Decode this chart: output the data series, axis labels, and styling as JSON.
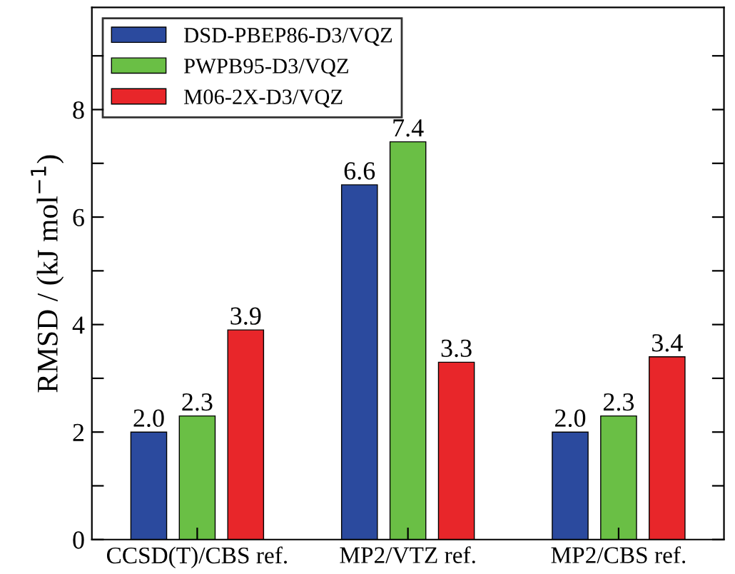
{
  "chart_data": {
    "type": "bar",
    "ylabel": "RMSD / (kJ mol$^{−1}$)",
    "categories": [
      "CCSD(T)/CBS ref.",
      "MP2/VTZ ref.",
      "MP2/CBS ref."
    ],
    "series": [
      {
        "name": "DSD-PBEP86-D3/VQZ",
        "color": "#2b4a9e",
        "values": [
          2.0,
          6.6,
          2.0
        ],
        "value_labels": [
          "2.0",
          "6.6",
          "2.0"
        ]
      },
      {
        "name": "PWPB95-D3/VQZ",
        "color": "#6abf45",
        "values": [
          2.3,
          7.4,
          2.3
        ],
        "value_labels": [
          "2.3",
          "7.4",
          "2.3"
        ]
      },
      {
        "name": "M06-2X-D3/VQZ",
        "color": "#e8262a",
        "values": [
          3.9,
          3.3,
          3.4
        ],
        "value_labels": [
          "3.9",
          "3.3",
          "3.4"
        ]
      }
    ],
    "ylim": [
      0,
      9.9
    ],
    "yticks": [
      0,
      {
        "value": 1,
        "label": null
      },
      2,
      {
        "value": 3,
        "label": null
      },
      4,
      {
        "value": 5,
        "label": null
      },
      6,
      {
        "value": 7,
        "label": null
      },
      8,
      {
        "value": 9,
        "label": null
      }
    ],
    "legend": "top left",
    "grid": false
  }
}
